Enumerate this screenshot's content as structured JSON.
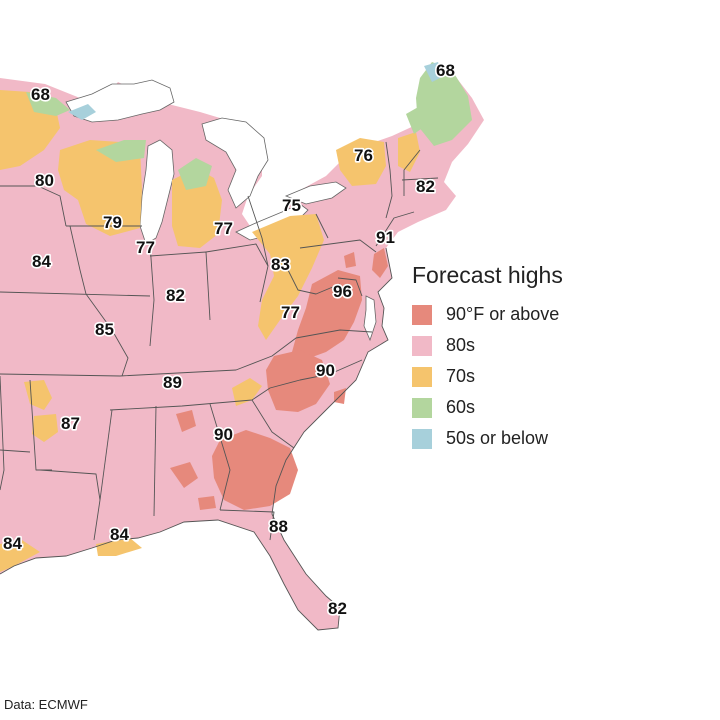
{
  "legend": {
    "title": "Forecast highs",
    "items": [
      {
        "label": "90°F or above",
        "color": "#e6897c"
      },
      {
        "label": "80s",
        "color": "#f1b9c7"
      },
      {
        "label": "70s",
        "color": "#f5c46d"
      },
      {
        "label": "60s",
        "color": "#b3d69e"
      },
      {
        "label": "50s or below",
        "color": "#a7d0db"
      }
    ]
  },
  "colors": {
    "water": "#ffffff",
    "state_border": "#555555",
    "hot": "#e6897c",
    "eighties": "#f1b9c7",
    "seventies": "#f5c46d",
    "sixties": "#b3d69e",
    "fifties": "#a7d0db"
  },
  "labels": [
    {
      "text": "68",
      "place": "lake-superior-shore"
    },
    {
      "text": "68",
      "place": "northern-maine"
    },
    {
      "text": "80",
      "place": "minnesota"
    },
    {
      "text": "79",
      "place": "wisconsin"
    },
    {
      "text": "77",
      "place": "chicago"
    },
    {
      "text": "77",
      "place": "michigan"
    },
    {
      "text": "75",
      "place": "lake-erie-ontario"
    },
    {
      "text": "76",
      "place": "northern-new-york"
    },
    {
      "text": "82",
      "place": "new-england"
    },
    {
      "text": "91",
      "place": "new-york-city"
    },
    {
      "text": "84",
      "place": "iowa"
    },
    {
      "text": "82",
      "place": "indiana"
    },
    {
      "text": "83",
      "place": "ohio"
    },
    {
      "text": "96",
      "place": "washington-dc"
    },
    {
      "text": "85",
      "place": "missouri"
    },
    {
      "text": "77",
      "place": "west-virginia"
    },
    {
      "text": "90",
      "place": "north-carolina"
    },
    {
      "text": "89",
      "place": "kentucky-tennessee"
    },
    {
      "text": "87",
      "place": "arkansas"
    },
    {
      "text": "90",
      "place": "georgia"
    },
    {
      "text": "84",
      "place": "texas-coast"
    },
    {
      "text": "84",
      "place": "louisiana"
    },
    {
      "text": "88",
      "place": "north-florida"
    },
    {
      "text": "82",
      "place": "south-florida"
    }
  ],
  "source": "Data: ECMWF"
}
